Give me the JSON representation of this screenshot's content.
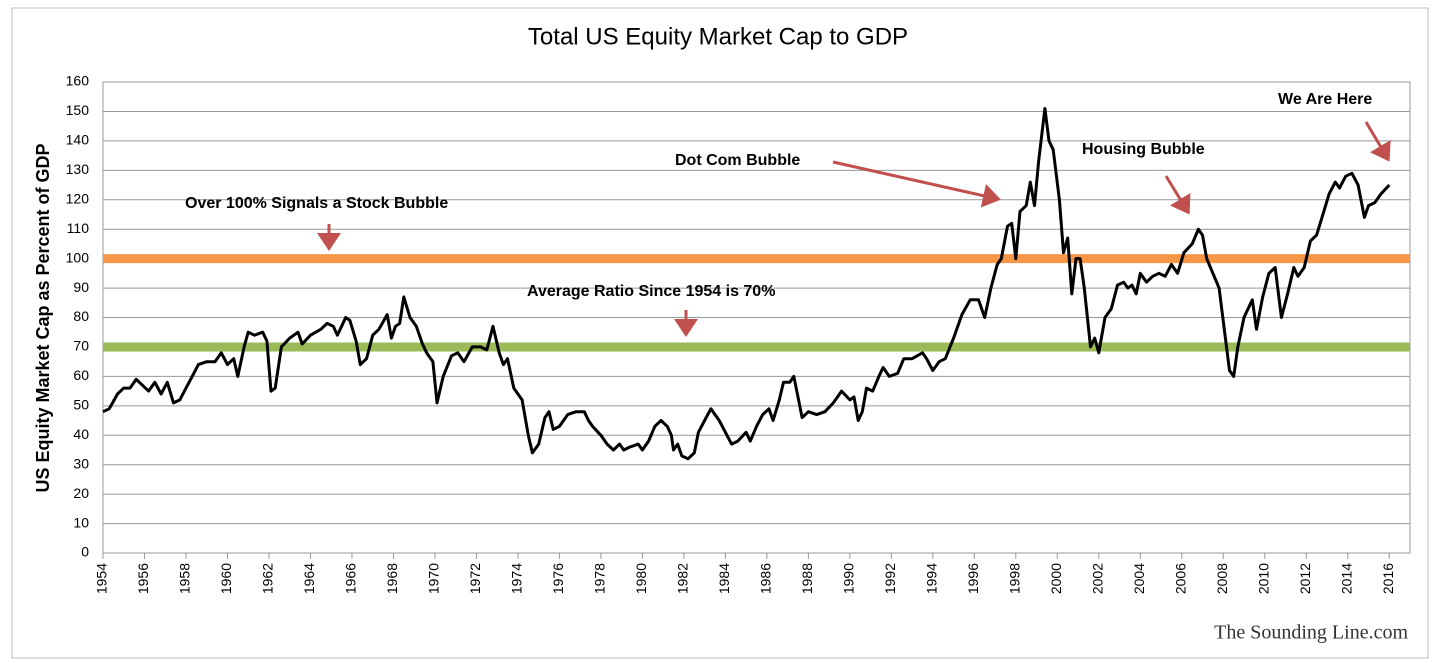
{
  "chart_data": {
    "type": "line",
    "title": "Total US Equity Market Cap to GDP",
    "y_label": "US Equity Market Cap as Percent of GDP",
    "source": "The Sounding Line.com",
    "annotations": [
      "Over 100% Signals a Stock Bubble",
      "Average Ratio Since 1954 is 70%",
      "Dot Com Bubble",
      "Housing Bubble",
      "We Are Here"
    ],
    "reference_lines": [
      {
        "value": 100,
        "color": "#f79646"
      },
      {
        "value": 70,
        "color": "#9bbb59"
      }
    ],
    "xlim": [
      1954,
      2017
    ],
    "xticks": [
      1954,
      1956,
      1958,
      1960,
      1962,
      1964,
      1966,
      1968,
      1970,
      1972,
      1974,
      1976,
      1978,
      1980,
      1982,
      1984,
      1986,
      1988,
      1990,
      1992,
      1994,
      1996,
      1998,
      2000,
      2002,
      2004,
      2006,
      2008,
      2010,
      2012,
      2014,
      2016
    ],
    "ylim": [
      0,
      160
    ],
    "yticks": [
      0,
      10,
      20,
      30,
      40,
      50,
      60,
      70,
      80,
      90,
      100,
      110,
      120,
      130,
      140,
      150,
      160
    ],
    "grid": true,
    "x": [
      1954.0,
      1954.3,
      1954.7,
      1955.0,
      1955.3,
      1955.6,
      1955.9,
      1956.2,
      1956.5,
      1956.8,
      1957.1,
      1957.4,
      1957.7,
      1958.0,
      1958.3,
      1958.6,
      1959.0,
      1959.4,
      1959.7,
      1960.0,
      1960.3,
      1960.5,
      1960.8,
      1961.0,
      1961.3,
      1961.7,
      1961.9,
      1962.1,
      1962.3,
      1962.6,
      1963.0,
      1963.4,
      1963.6,
      1964.0,
      1964.5,
      1964.8,
      1965.1,
      1965.3,
      1965.7,
      1965.9,
      1966.2,
      1966.4,
      1966.7,
      1967.0,
      1967.3,
      1967.7,
      1967.9,
      1968.1,
      1968.3,
      1968.5,
      1968.8,
      1969.1,
      1969.4,
      1969.6,
      1969.9,
      1970.1,
      1970.4,
      1970.8,
      1971.1,
      1971.4,
      1971.8,
      1972.2,
      1972.5,
      1972.8,
      1973.1,
      1973.3,
      1973.5,
      1973.8,
      1974.2,
      1974.5,
      1974.7,
      1975.0,
      1975.3,
      1975.5,
      1975.7,
      1976.0,
      1976.4,
      1976.8,
      1977.2,
      1977.4,
      1977.6,
      1978.0,
      1978.3,
      1978.6,
      1978.9,
      1979.1,
      1979.4,
      1979.8,
      1980.0,
      1980.3,
      1980.6,
      1980.9,
      1981.2,
      1981.4,
      1981.5,
      1981.7,
      1981.9,
      1982.2,
      1982.5,
      1982.7,
      1983.0,
      1983.3,
      1983.7,
      1984.0,
      1984.3,
      1984.6,
      1985.0,
      1985.2,
      1985.5,
      1985.8,
      1986.1,
      1986.3,
      1986.6,
      1986.8,
      1987.1,
      1987.3,
      1987.5,
      1987.7,
      1988.0,
      1988.4,
      1988.8,
      1989.2,
      1989.6,
      1990.0,
      1990.2,
      1990.4,
      1990.6,
      1990.8,
      1991.1,
      1991.4,
      1991.6,
      1991.9,
      1992.3,
      1992.6,
      1993.0,
      1993.5,
      1993.7,
      1994.0,
      1994.3,
      1994.6,
      1995.0,
      1995.4,
      1995.8,
      1996.2,
      1996.5,
      1996.8,
      1997.1,
      1997.3,
      1997.6,
      1997.8,
      1998.0,
      1998.2,
      1998.5,
      1998.7,
      1998.9,
      1999.1,
      1999.4,
      1999.6,
      1999.8,
      2000.1,
      2000.3,
      2000.5,
      2000.7,
      2000.9,
      2001.1,
      2001.3,
      2001.6,
      2001.8,
      2002.0,
      2002.3,
      2002.6,
      2002.9,
      2003.2,
      2003.4,
      2003.6,
      2003.8,
      2004.0,
      2004.3,
      2004.6,
      2004.9,
      2005.2,
      2005.5,
      2005.8,
      2006.1,
      2006.5,
      2006.8,
      2007.0,
      2007.2,
      2007.5,
      2007.8,
      2008.1,
      2008.3,
      2008.5,
      2008.7,
      2009.0,
      2009.4,
      2009.6,
      2009.9,
      2010.2,
      2010.5,
      2010.8,
      2011.1,
      2011.4,
      2011.6,
      2011.9,
      2012.2,
      2012.5,
      2012.8,
      2013.1,
      2013.4,
      2013.6,
      2013.9,
      2014.2,
      2014.5,
      2014.8,
      2015.0,
      2015.3,
      2015.6,
      2016.0
    ],
    "series": [
      {
        "color": "#000000",
        "values": [
          48,
          49,
          54,
          56,
          56,
          59,
          57,
          55,
          58,
          54,
          58,
          51,
          52,
          56,
          60,
          64,
          65,
          65,
          68,
          64,
          66,
          60,
          70,
          75,
          74,
          75,
          72,
          55,
          56,
          70,
          73,
          75,
          71,
          74,
          76,
          78,
          77,
          74,
          80,
          79,
          72,
          64,
          66,
          74,
          76,
          81,
          73,
          77,
          78,
          87,
          80,
          77,
          71,
          68,
          65,
          51,
          60,
          67,
          68,
          65,
          70,
          70,
          69,
          77,
          68,
          64,
          66,
          56,
          52,
          40,
          34,
          37,
          46,
          48,
          42,
          43,
          47,
          48,
          48,
          45,
          43,
          40,
          37,
          35,
          37,
          35,
          36,
          37,
          35,
          38,
          43,
          45,
          43,
          40,
          35,
          37,
          33,
          32,
          34,
          41,
          45,
          49,
          45,
          41,
          37,
          38,
          41,
          38,
          43,
          47,
          49,
          45,
          52,
          58,
          58,
          60,
          53,
          46,
          48,
          47,
          48,
          51,
          55,
          52,
          53,
          45,
          48,
          56,
          55,
          60,
          63,
          60,
          61,
          66,
          66,
          68,
          66,
          62,
          65,
          66,
          73,
          81,
          86,
          86,
          80,
          90,
          98,
          100,
          111,
          112,
          100,
          116,
          118,
          126,
          118,
          133,
          151,
          140,
          137,
          120,
          102,
          107,
          88,
          100,
          100,
          90,
          70,
          73,
          68,
          80,
          83,
          91,
          92,
          90,
          91,
          88,
          95,
          92,
          94,
          95,
          94,
          98,
          95,
          102,
          105,
          110,
          108,
          100,
          95,
          90,
          73,
          62,
          60,
          70,
          80,
          86,
          76,
          87,
          95,
          97,
          80,
          88,
          97,
          94,
          97,
          106,
          108,
          115,
          122,
          126,
          124,
          128,
          129,
          125,
          114,
          118,
          119,
          122,
          125
        ]
      }
    ]
  }
}
